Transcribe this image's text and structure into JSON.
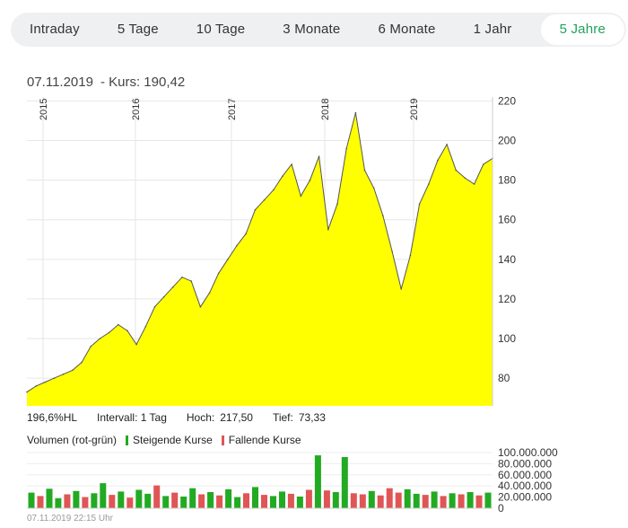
{
  "tabs": [
    {
      "label": "Intraday",
      "active": false
    },
    {
      "label": "5 Tage",
      "active": false
    },
    {
      "label": "10 Tage",
      "active": false
    },
    {
      "label": "3 Monate",
      "active": false
    },
    {
      "label": "6 Monate",
      "active": false
    },
    {
      "label": "1 Jahr",
      "active": false
    },
    {
      "label": "5 Jahre",
      "active": true
    }
  ],
  "quote": {
    "date": "07.11.2019",
    "kurs_label": "- Kurs: 190,42"
  },
  "stats": {
    "hl": "196,6%HL",
    "interval": "Intervall: 1 Tag",
    "high_label": "Hoch:",
    "high_value": "217,50",
    "low_label": "Tief:",
    "low_value": "73,33"
  },
  "volume_legend": {
    "title": "Volumen (rot-grün)",
    "rising": "Steigende Kurse",
    "falling": "Fallende Kurse"
  },
  "footer": {
    "timestamp": "07.11.2019 22:15 Uhr"
  },
  "colors": {
    "area_fill": "#ffff00",
    "line": "#555555",
    "rising": "#22aa22",
    "falling": "#e05555",
    "active_tab": "#1fa35a"
  },
  "chart_data": [
    {
      "type": "area",
      "x_labels": [
        "2015",
        "2016",
        "2017",
        "2018",
        "2019"
      ],
      "y_ticks": [
        80,
        100,
        120,
        140,
        160,
        180,
        200,
        220
      ],
      "ylim": [
        66,
        222
      ],
      "grid": true,
      "series": [
        {
          "values": [
            73,
            76,
            78,
            80,
            82,
            84,
            88,
            96,
            100,
            103,
            107,
            104,
            97,
            106,
            116,
            121,
            126,
            131,
            129,
            116,
            123,
            133,
            140,
            147,
            153,
            165,
            170,
            175,
            182,
            188,
            172,
            180,
            192,
            155,
            168,
            196,
            214,
            185,
            176,
            162,
            144,
            125,
            142,
            168,
            178,
            190,
            198,
            185,
            181,
            178,
            188,
            191
          ]
        }
      ]
    },
    {
      "type": "bar",
      "y_ticks": [
        "0",
        "20.000.000",
        "40.000.000",
        "60.000.000",
        "80.000.000",
        "100.000.000"
      ],
      "ylim": [
        0,
        100000000
      ],
      "series": [
        {
          "values": [
            28000000,
            22000000,
            35000000,
            18000000,
            25000000,
            31000000,
            20000000,
            27000000,
            45000000,
            24000000,
            30000000,
            19000000,
            33000000,
            26000000,
            41000000,
            22000000,
            28000000,
            21000000,
            36000000,
            25000000,
            29000000,
            23000000,
            34000000,
            20000000,
            27000000,
            38000000,
            24000000,
            22000000,
            30000000,
            26000000,
            21000000,
            33000000,
            95000000,
            32000000,
            29000000,
            92000000,
            27000000,
            25000000,
            31000000,
            23000000,
            36000000,
            28000000,
            34000000,
            26000000,
            24000000,
            30000000,
            22000000,
            27000000,
            25000000,
            29000000,
            23000000,
            28000000
          ],
          "rising": [
            true,
            false,
            true,
            true,
            false,
            true,
            false,
            true,
            true,
            false,
            true,
            false,
            true,
            true,
            false,
            true,
            false,
            true,
            true,
            false,
            true,
            false,
            true,
            true,
            false,
            true,
            false,
            true,
            true,
            false,
            true,
            false,
            true,
            false,
            true,
            true,
            false,
            false,
            true,
            false,
            false,
            false,
            true,
            true,
            false,
            true,
            false,
            true,
            false,
            true,
            false,
            true
          ]
        }
      ]
    }
  ]
}
